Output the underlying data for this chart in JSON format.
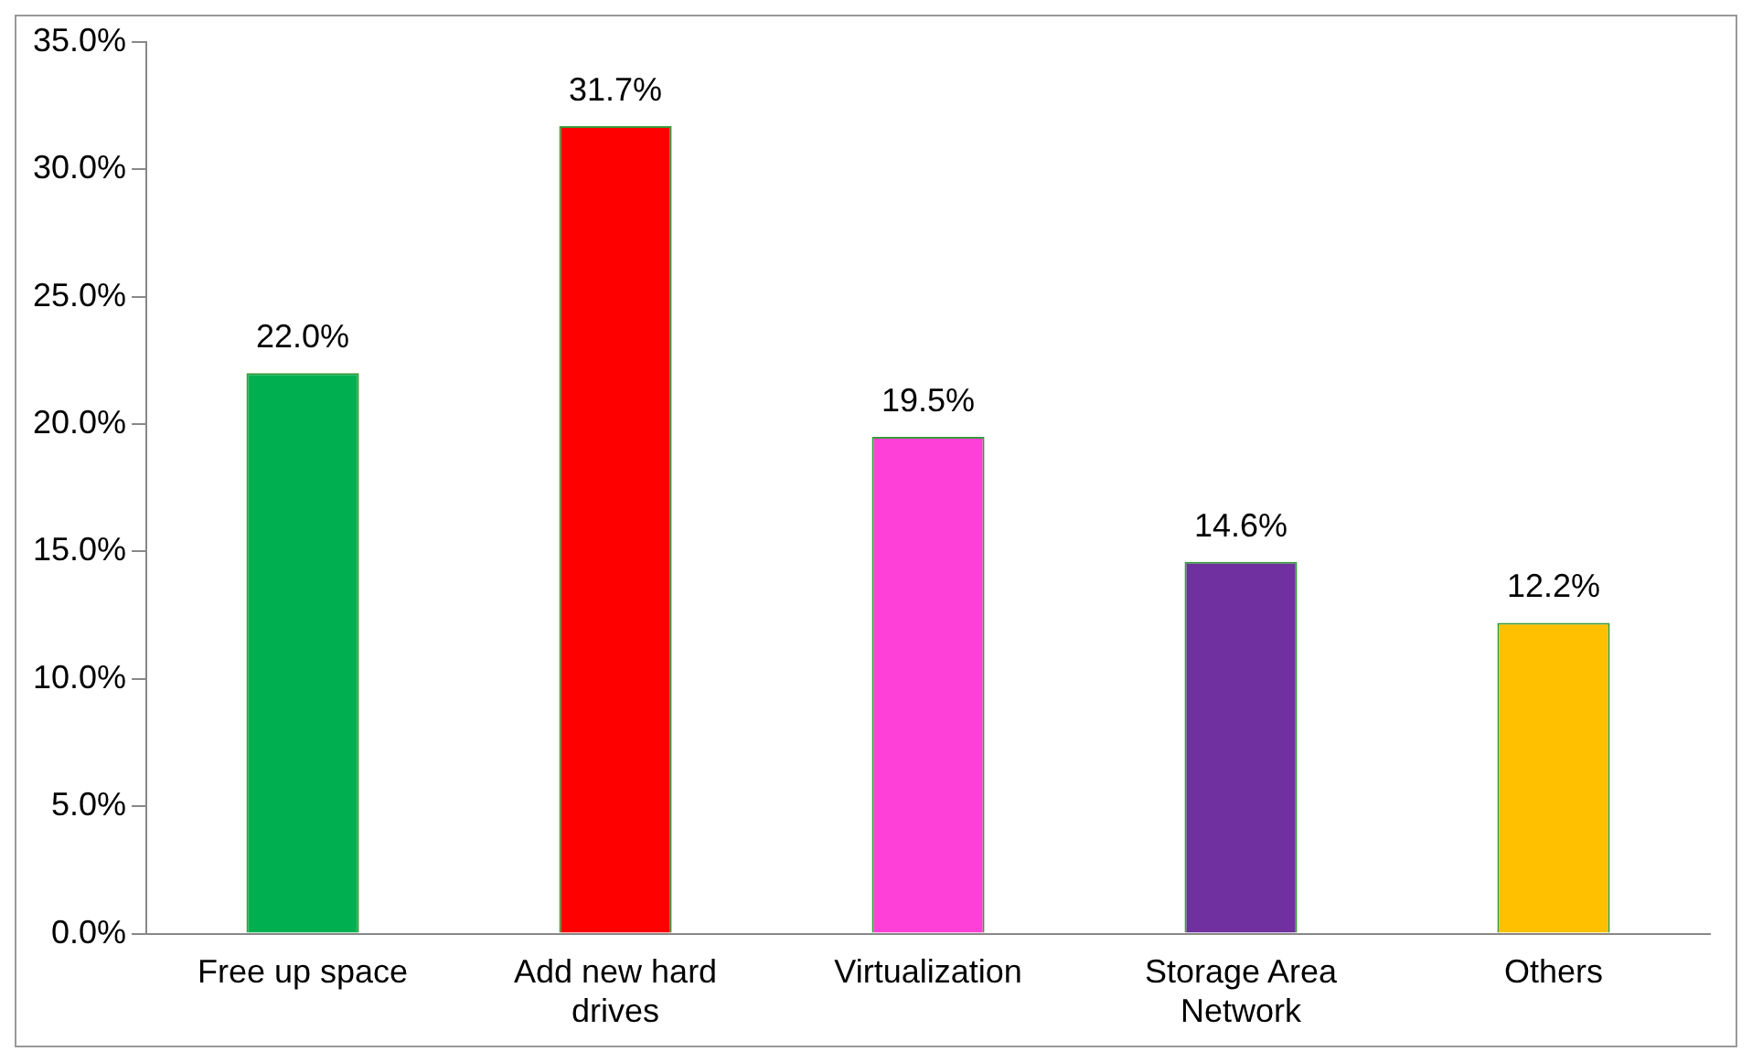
{
  "chart_data": {
    "type": "bar",
    "categories": [
      "Free up space",
      "Add new hard drives",
      "Virtualization",
      "Storage Area Network",
      "Others"
    ],
    "values": [
      22.0,
      31.7,
      19.5,
      14.6,
      12.2
    ],
    "colors": [
      "#00b050",
      "#ff0000",
      "#ff40d8",
      "#7030a0",
      "#ffc000"
    ],
    "value_labels": [
      "22.0%",
      "31.7%",
      "19.5%",
      "14.6%",
      "12.2%"
    ],
    "ylim": [
      0,
      35
    ],
    "yticks": [
      {
        "value": 0,
        "label": "0.0%"
      },
      {
        "value": 5,
        "label": "5.0%"
      },
      {
        "value": 10,
        "label": "10.0%"
      },
      {
        "value": 15,
        "label": "15.0%"
      },
      {
        "value": 20,
        "label": "20.0%"
      },
      {
        "value": 25,
        "label": "25.0%"
      },
      {
        "value": 30,
        "label": "30.0%"
      },
      {
        "value": 35,
        "label": "35.0%"
      }
    ],
    "grid": false,
    "legend": false
  }
}
